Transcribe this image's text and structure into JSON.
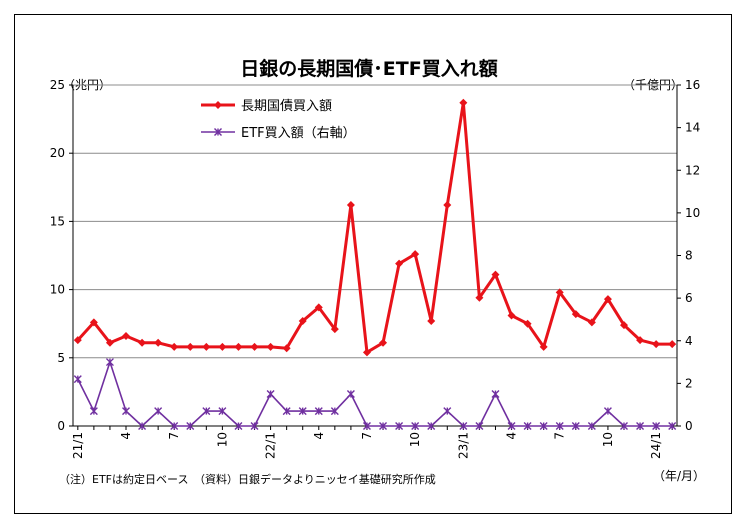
{
  "chart_data": {
    "type": "line",
    "title": "日銀の長期国債･ETF買入れ額",
    "left_unit": "（兆円）",
    "right_unit": "（千億円）",
    "x_unit": "（年/月）",
    "note": "（注）ETFは約定日ベース　（資料）日銀データよりニッセイ基礎研究所作成",
    "ylim_left": [
      0,
      25
    ],
    "yticks_left": [
      0,
      5,
      10,
      15,
      20,
      25
    ],
    "ylim_right": [
      0,
      16
    ],
    "yticks_right": [
      0,
      2,
      4,
      6,
      8,
      10,
      12,
      14,
      16
    ],
    "grid": "horizontal",
    "legend_position": "upper-left",
    "x": [
      "21/1",
      "21/2",
      "21/3",
      "21/4",
      "21/5",
      "21/6",
      "21/7",
      "21/8",
      "21/9",
      "21/10",
      "21/11",
      "21/12",
      "22/1",
      "22/2",
      "22/3",
      "22/4",
      "22/5",
      "22/6",
      "22/7",
      "22/8",
      "22/9",
      "22/10",
      "22/11",
      "22/12",
      "23/1",
      "23/2",
      "23/3",
      "23/4",
      "23/5",
      "23/6",
      "23/7",
      "23/8",
      "23/9",
      "23/10",
      "23/11",
      "23/12",
      "24/1",
      "24/2"
    ],
    "x_tick_labels": [
      {
        "index": 0,
        "label": "21/1"
      },
      {
        "index": 3,
        "label": "4"
      },
      {
        "index": 6,
        "label": "7"
      },
      {
        "index": 9,
        "label": "10"
      },
      {
        "index": 12,
        "label": "22/1"
      },
      {
        "index": 15,
        "label": "4"
      },
      {
        "index": 18,
        "label": "7"
      },
      {
        "index": 21,
        "label": "10"
      },
      {
        "index": 24,
        "label": "23/1"
      },
      {
        "index": 27,
        "label": "4"
      },
      {
        "index": 30,
        "label": "7"
      },
      {
        "index": 33,
        "label": "10"
      },
      {
        "index": 36,
        "label": "24/1"
      }
    ],
    "series": [
      {
        "name": "長期国債買入額",
        "axis": "left",
        "color": "#e8131a",
        "marker": "diamond",
        "values": [
          6.3,
          7.6,
          6.1,
          6.6,
          6.1,
          6.1,
          5.8,
          5.8,
          5.8,
          5.8,
          5.8,
          5.8,
          5.8,
          5.7,
          7.7,
          8.7,
          7.1,
          16.2,
          5.4,
          6.1,
          11.9,
          12.6,
          7.7,
          16.2,
          23.7,
          9.4,
          11.1,
          8.1,
          7.5,
          5.8,
          9.8,
          8.2,
          7.6,
          9.3,
          7.4,
          6.3,
          6.0,
          6.0
        ]
      },
      {
        "name": "ETF買入額（右軸）",
        "axis": "right",
        "color": "#7030a0",
        "marker": "asterisk",
        "values": [
          2.2,
          0.7,
          3.0,
          0.7,
          0.0,
          0.7,
          0.0,
          0.0,
          0.7,
          0.7,
          0.0,
          0.0,
          1.5,
          0.7,
          0.7,
          0.7,
          0.7,
          1.5,
          0.0,
          0.0,
          0.0,
          0.0,
          0.0,
          0.7,
          0.0,
          0.0,
          1.5,
          0.0,
          0.0,
          0.0,
          0.0,
          0.0,
          0.0,
          0.7,
          0.0,
          0.0,
          0.0,
          0.0
        ]
      }
    ]
  }
}
